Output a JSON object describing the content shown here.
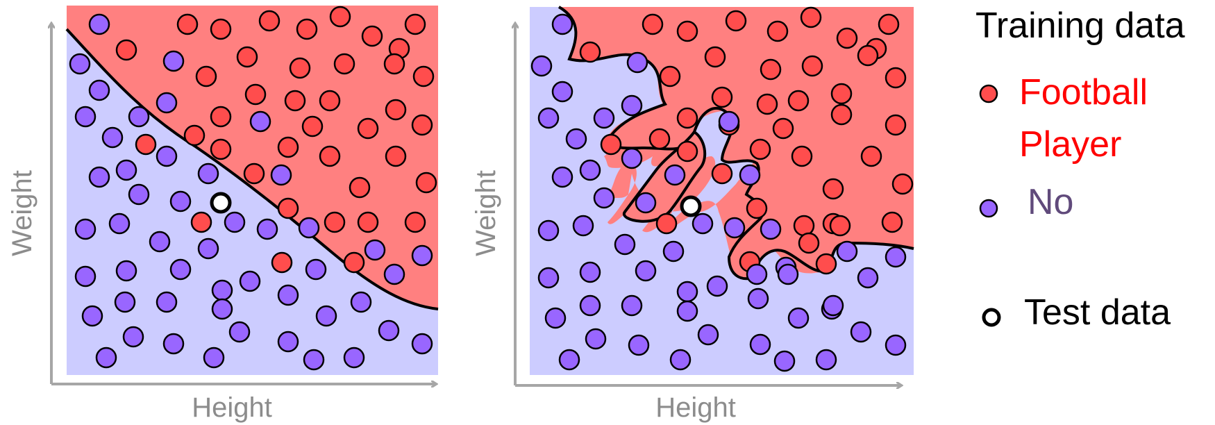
{
  "panels": [
    {
      "id": "left",
      "xlabel": "Height",
      "ylabel": "Weight",
      "boundary": "smooth"
    },
    {
      "id": "right",
      "xlabel": "Height",
      "ylabel": "Weight",
      "boundary": "overfit"
    }
  ],
  "legend": {
    "title": "Training data",
    "football_line1": "Football",
    "football_line2": "Player",
    "no_label": "No",
    "test_label": "Test data"
  },
  "colors": {
    "football_point": "#ff4d4d",
    "no_point": "#9966ff",
    "football_region": "#ff8080",
    "no_region": "#ccccff",
    "football_text": "#ff0000",
    "no_text": "#604a7b",
    "axis": "#a6a6a6",
    "boundary": "#000000"
  }
}
